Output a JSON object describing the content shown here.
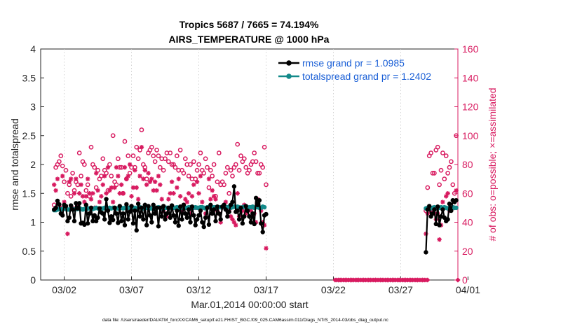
{
  "chart_data": {
    "type": "line",
    "title_line1": "Tropics 5687 / 7665 = 74.194%",
    "title_line2": "AIRS_TEMPERATURE @ 1000 hPa",
    "ylabel": "rmse and totalspread",
    "y2label": "# of obs: o=possible; ×=assimilated",
    "xlabel": "Mar.01,2014 00:00:00 start",
    "footnote": "data file: /Users/raeder/DAI/ATM_forcXX/CAM6_setup/f.e21.FHIST_BGC.f09_025.CAM6assim.011/Diags_NTrS_2014-03/obs_diag_output.nc",
    "ylim": [
      0,
      4
    ],
    "y2lim": [
      0,
      160
    ],
    "xlim": [
      0.25,
      31.25
    ],
    "yticks": [
      "0",
      "0.5",
      "1",
      "1.5",
      "2",
      "2.5",
      "3",
      "3.5",
      "4"
    ],
    "y2ticks": [
      "0",
      "20",
      "40",
      "60",
      "80",
      "100",
      "120",
      "140",
      "160"
    ],
    "xticks": [
      {
        "day": 2,
        "label": "03/02"
      },
      {
        "day": 7,
        "label": "03/07"
      },
      {
        "day": 12,
        "label": "03/12"
      },
      {
        "day": 17,
        "label": "03/17"
      },
      {
        "day": 22,
        "label": "03/22"
      },
      {
        "day": 27,
        "label": "03/27"
      },
      {
        "day": 32,
        "label": "04/01"
      }
    ],
    "legend": {
      "position": "top-right",
      "rmse_label": "rmse grand pr = 1.0985",
      "spread_label": "totalspread grand pr = 1.2402"
    },
    "colors": {
      "rmse": "#000000",
      "spread": "#138a8a",
      "obs": "#d81b60",
      "legend_text": "#1a5fd6"
    },
    "series": [
      {
        "name": "rmse",
        "segments": [
          {
            "start_day": 1.25,
            "step": 0.125,
            "values": [
              1.22,
              1.25,
              1.37,
              1.31,
              1.15,
              1.12,
              1.3,
              1.28,
              1.02,
              1.08,
              1.29,
              1.22,
              1.02,
              1.33,
              1.24,
              1.33,
              0.98,
              0.99,
              0.96,
              1.3,
              0.98,
              1.15,
              1.25,
              1.02,
              1.12,
              1.02,
              1.08,
              1.24,
              1.17,
              1.15,
              1.05,
              1.4,
              1.2,
              0.99,
              1.1,
              1.04,
              1.25,
              1.15,
              0.99,
              1.28,
              1.02,
              1.15,
              0.95,
              1.31,
              1.05,
              1.18,
              1.28,
              0.98,
              1.2,
              0.86,
              1.32,
              1.1,
              1.25,
              1.05,
              1.3,
              0.95,
              1.28,
              1.12,
              1.0,
              1.3,
              1.15,
              1.25,
              0.93,
              1.25,
              1.1,
              1.28,
              1.05,
              1.15,
              1.25,
              1.08,
              1.29,
              1.12,
              1.0,
              1.2,
              0.94,
              1.27,
              1.05,
              1.3,
              1.15,
              1.08,
              1.22,
              1.0,
              1.27,
              1.12,
              0.95,
              1.05,
              1.12,
              1.2,
              1.0,
              0.92,
              1.08,
              1.25,
              0.96,
              1.3,
              1.15,
              1.22,
              1.02,
              1.27,
              1.15,
              1.05,
              1.27,
              1.3,
              1.22,
              1.1,
              1.18,
              1.3,
              1.35,
              1.62,
              1.18,
              1.2,
              1.05,
              1.25,
              0.98,
              1.1,
              1.28,
              1.2,
              1.1,
              1.0,
              1.15,
              0.97,
              1.42,
              1.3,
              1.38,
              0.98,
              0.83,
              1.12,
              1.14
            ]
          },
          {
            "start_day": 28.875,
            "step": 0.125,
            "values": [
              0.48,
              1.22,
              1.28,
              1.1,
              1.15,
              1.22,
              0.97,
              1.27,
              0.95,
              1.1,
              1.22,
              1.08,
              1.02,
              1.05,
              1.32,
              1.2,
              1.38,
              1.35,
              1.38
            ]
          }
        ]
      },
      {
        "name": "totalspread",
        "segments": [
          {
            "start_day": 1.25,
            "step": 0.125,
            "values": [
              1.21,
              1.21,
              1.22,
              1.23,
              1.22,
              1.23,
              1.24,
              1.23,
              1.22,
              1.22,
              1.23,
              1.23,
              1.22,
              1.23,
              1.23,
              1.24,
              1.23,
              1.22,
              1.23,
              1.23,
              1.24,
              1.24,
              1.23,
              1.23,
              1.24,
              1.25,
              1.24,
              1.23,
              1.24,
              1.24,
              1.25,
              1.24,
              1.24,
              1.25,
              1.24,
              1.25,
              1.25,
              1.24,
              1.24,
              1.25,
              1.25,
              1.24,
              1.25,
              1.26,
              1.25,
              1.25,
              1.24,
              1.25,
              1.25,
              1.24,
              1.25,
              1.26,
              1.25,
              1.24,
              1.25,
              1.25,
              1.25,
              1.24,
              1.24,
              1.26,
              1.24,
              1.25,
              1.26,
              1.25,
              1.24,
              1.26,
              1.25,
              1.25,
              1.24,
              1.25,
              1.26,
              1.25,
              1.25,
              1.26,
              1.25,
              1.24,
              1.25,
              1.26,
              1.25,
              1.25,
              1.26,
              1.26,
              1.25,
              1.25,
              1.26,
              1.25,
              1.25,
              1.26,
              1.26,
              1.25,
              1.24,
              1.26,
              1.26,
              1.25,
              1.25,
              1.26,
              1.26,
              1.25,
              1.26,
              1.26,
              1.27,
              1.26,
              1.25,
              1.26,
              1.27,
              1.25,
              1.26,
              1.27,
              1.26,
              1.27,
              1.26,
              1.25,
              1.26,
              1.27,
              1.26,
              1.25,
              1.26,
              1.26,
              1.27,
              1.25,
              1.26,
              1.26,
              1.25,
              1.25,
              1.27,
              1.26
            ]
          },
          {
            "start_day": 28.875,
            "step": 0.125,
            "values": [
              1.24,
              1.25,
              1.25,
              1.24,
              1.25,
              1.26,
              1.25,
              1.24,
              1.25,
              1.26,
              1.25,
              1.26,
              1.25,
              1.24,
              1.25,
              1.25,
              1.26,
              1.25,
              1.25
            ]
          }
        ]
      },
      {
        "name": "observations_possible",
        "axis": "right",
        "marker": "o",
        "segments": [
          {
            "start_day": 1.25,
            "step": 0.125,
            "values": [
              52,
              78,
              80,
              82,
              86,
              79,
              68,
              76,
              60,
              66,
              58,
              74,
              62,
              68,
              66,
              88,
              72,
              82,
              80,
              62,
              66,
              58,
              92,
              80,
              78,
              64,
              76,
              70,
              72,
              84,
              76,
              74,
              62,
              80,
              72,
              100,
              68,
              66,
              84,
              78,
              78,
              60,
              96,
              70,
              86,
              74,
              78,
              86,
              78,
              92,
              84,
              90,
              104,
              80,
              78,
              70,
              88,
              90,
              92,
              86,
              82,
              90,
              86,
              78,
              84,
              76,
              84,
              88,
              82,
              88,
              80,
              80,
              78,
              86,
              76,
              90,
              76,
              74,
              84,
              80,
              72,
              80,
              70,
              82,
              70,
              76,
              80,
              88,
              76,
              74,
              84,
              78,
              64,
              76,
              72,
              80,
              58,
              68,
              88,
              66,
              68,
              66,
              74,
              78,
              60,
              76,
              72,
              78,
              80,
              94,
              76,
              86,
              82,
              84,
              78,
              74,
              76,
              80,
              82,
              88,
              82,
              74,
              74,
              80,
              78,
              92,
              66
            ]
          },
          {
            "start_day": 28.875,
            "step": 0.125,
            "values": [
              48,
              64,
              86,
              88,
              74,
              74,
              90,
              92,
              66,
              76,
              88,
              70,
              86,
              74,
              78,
              82,
              66,
              60,
              100
            ]
          }
        ]
      },
      {
        "name": "observations_assimilated",
        "axis": "right",
        "marker": "*",
        "segments": [
          {
            "start_day": 1.25,
            "step": 0.125,
            "values": [
              66,
              62,
              70,
              52,
              50,
              72,
              54,
              50,
              32,
              68,
              70,
              50,
              60,
              70,
              52,
              60,
              66,
              58,
              54,
              58,
              70,
              60,
              56,
              60,
              50,
              74,
              62,
              54,
              58,
              66,
              72,
              60,
              78,
              62,
              64,
              54,
              64,
              78,
              72,
              60,
              66,
              60,
              78,
              70,
              72,
              80,
              58,
              64,
              76,
              64,
              56,
              72,
              92,
              70,
              76,
              66,
              74,
              68,
              70,
              62,
              68,
              62,
              72,
              66,
              56,
              48,
              50,
              44,
              56,
              60,
              68,
              60,
              50,
              64,
              70,
              58,
              48,
              52,
              56,
              54,
              60,
              46,
              58,
              66,
              50,
              68,
              60,
              72,
              54,
              50,
              46,
              50,
              70,
              56,
              62,
              58,
              56,
              48,
              46,
              40,
              50,
              52,
              54,
              50,
              48,
              44,
              42,
              40,
              38,
              60,
              44,
              50,
              48,
              52,
              46,
              48,
              50,
              48,
              44,
              46,
              40,
              56,
              50,
              48,
              40,
              38,
              22
            ]
          },
          {
            "start_day": 28.875,
            "step": 0.125,
            "values": [
              32,
              46,
              50,
              48,
              50,
              46,
              42,
              46,
              28,
              38,
              54,
              50,
              58,
              60,
              48,
              50,
              50,
              50,
              62
            ]
          }
        ]
      },
      {
        "name": "zero_obs",
        "axis": "right",
        "marker": "diamond",
        "segments": [
          {
            "start_day": 22.125,
            "step": 0.125,
            "values": [
              0,
              0,
              0,
              0,
              0,
              0,
              0,
              0,
              0,
              0,
              0,
              0,
              0,
              0,
              0,
              0,
              0,
              0,
              0,
              0,
              0,
              0,
              0,
              0,
              0,
              0,
              0,
              0,
              0,
              0,
              0,
              0,
              0,
              0,
              0,
              0,
              0,
              0,
              0,
              0,
              0,
              0,
              0,
              0,
              0,
              0,
              0,
              0,
              0,
              0,
              0,
              0,
              0,
              0,
              0,
              0
            ]
          },
          {
            "start_day": 31.25,
            "step": 0.125,
            "values": [
              0
            ]
          }
        ]
      }
    ]
  }
}
